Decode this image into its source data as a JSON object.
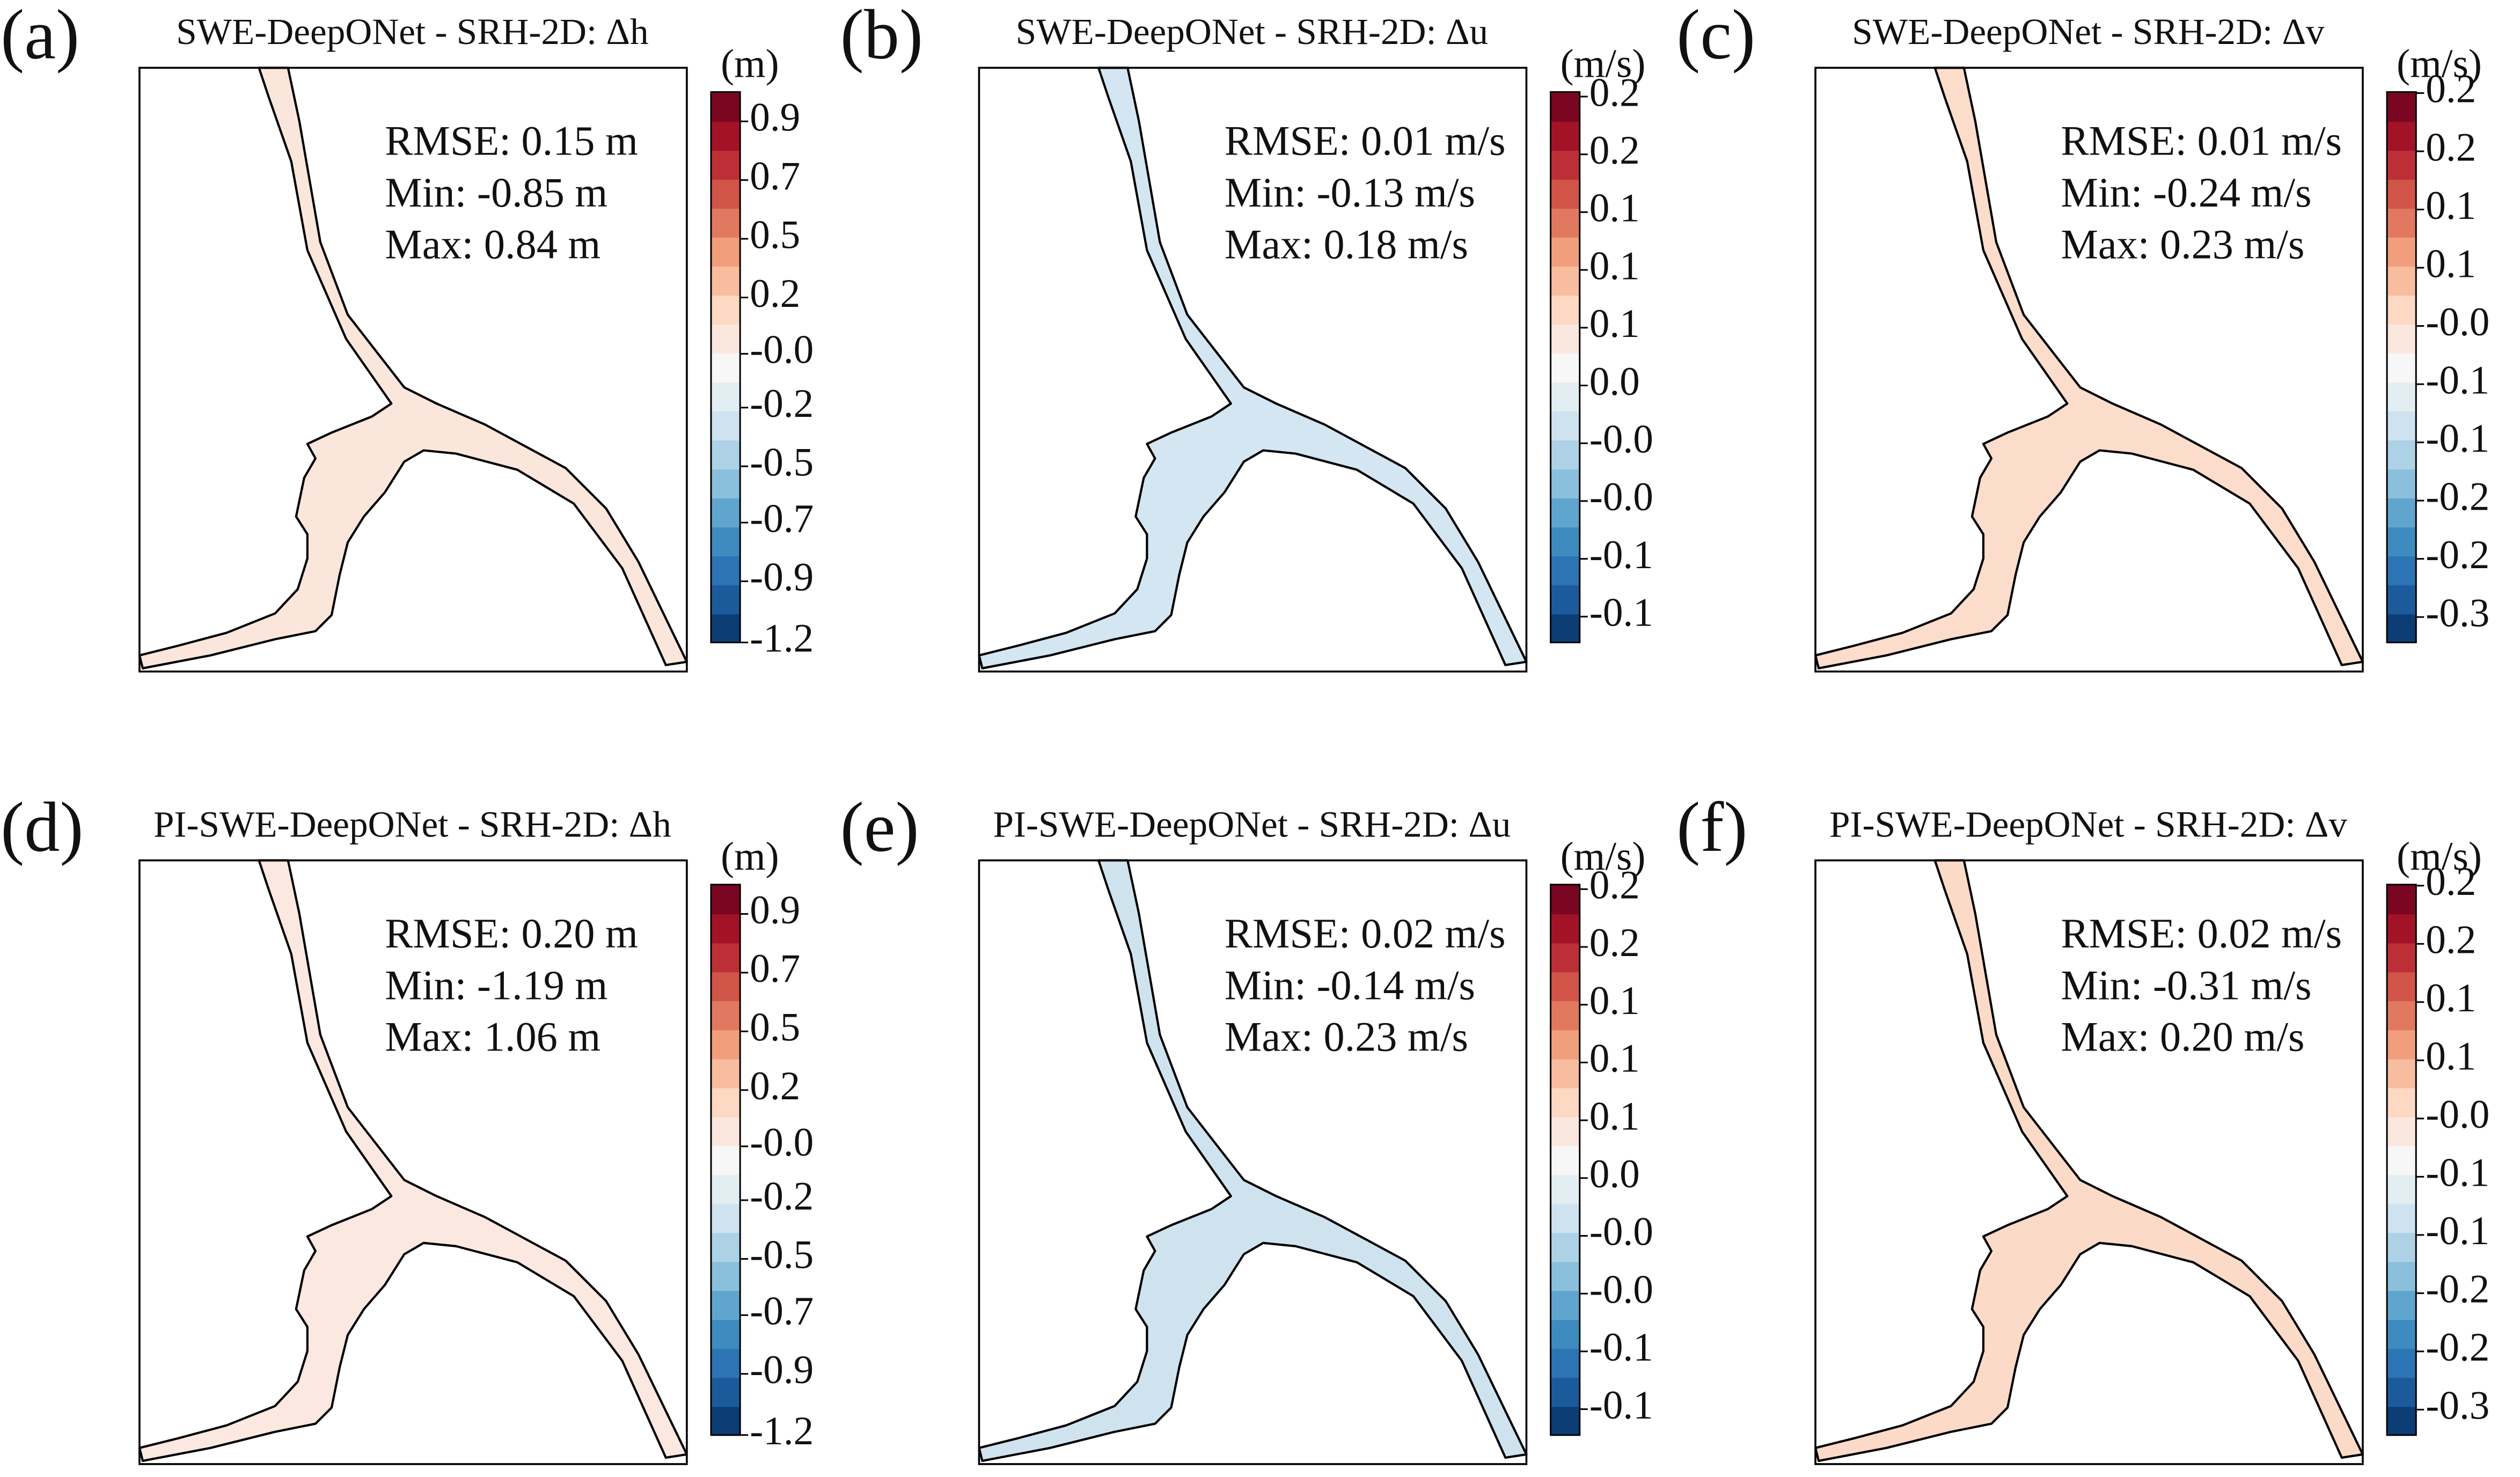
{
  "chart_data": [
    {
      "type": "contour",
      "label": "(a)",
      "title": "SWE-DeepONet - SRH-2D: Δh",
      "annotations": [
        "RMSE: 0.15 m",
        "Min: -0.85 m",
        "Max: 0.84 m"
      ],
      "colorbar_label": "(m)",
      "color": "#fbe6dc",
      "clim": [
        -1.19,
        1.06
      ],
      "cticks": [
        {
          "value": -1.19,
          "label": "-1.2"
        },
        {
          "value": -0.94,
          "label": "-0.9"
        },
        {
          "value": -0.7,
          "label": "-0.7"
        },
        {
          "value": -0.47,
          "label": "-0.5"
        },
        {
          "value": -0.23,
          "label": "-0.2"
        },
        {
          "value": -0.01,
          "label": "-0.0"
        },
        {
          "value": 0.22,
          "label": "0.2"
        },
        {
          "value": 0.46,
          "label": "0.5"
        },
        {
          "value": 0.7,
          "label": "0.7"
        },
        {
          "value": 0.94,
          "label": "0.9"
        }
      ]
    },
    {
      "type": "contour",
      "label": "(b)",
      "title": "SWE-DeepONet - SRH-2D: Δu",
      "annotations": [
        "RMSE: 0.01 m/s",
        "Min: -0.13 m/s",
        "Max: 0.18 m/s"
      ],
      "colorbar_label": "(m/s)",
      "color": "#d3e6f1",
      "clim": [
        -0.142,
        0.22
      ],
      "cticks": [
        {
          "value": -0.125,
          "label": "-0.1"
        },
        {
          "value": -0.087,
          "label": "-0.1"
        },
        {
          "value": -0.049,
          "label": "-0.0"
        },
        {
          "value": -0.011,
          "label": "-0.0"
        },
        {
          "value": 0.027,
          "label": "0.0"
        },
        {
          "value": 0.065,
          "label": "0.1"
        },
        {
          "value": 0.103,
          "label": "0.1"
        },
        {
          "value": 0.141,
          "label": "0.1"
        },
        {
          "value": 0.179,
          "label": "0.2"
        },
        {
          "value": 0.217,
          "label": "0.2"
        }
      ]
    },
    {
      "type": "contour",
      "label": "(c)",
      "title": "SWE-DeepONet - SRH-2D: Δv",
      "annotations": [
        "RMSE: 0.01 m/s",
        "Min: -0.24 m/s",
        "Max: 0.23 m/s"
      ],
      "colorbar_label": "(m/s)",
      "color": "#fcdcca",
      "clim": [
        -0.3,
        0.22
      ],
      "cticks": [
        {
          "value": -0.276,
          "label": "-0.3"
        },
        {
          "value": -0.221,
          "label": "-0.2"
        },
        {
          "value": -0.166,
          "label": "-0.2"
        },
        {
          "value": -0.111,
          "label": "-0.1"
        },
        {
          "value": -0.056,
          "label": "-0.1"
        },
        {
          "value": -0.001,
          "label": "-0.0"
        },
        {
          "value": 0.054,
          "label": "0.1"
        },
        {
          "value": 0.109,
          "label": "0.1"
        },
        {
          "value": 0.164,
          "label": "0.2"
        },
        {
          "value": 0.219,
          "label": "0.2"
        }
      ]
    },
    {
      "type": "contour",
      "label": "(d)",
      "title": "PI-SWE-DeepONet - SRH-2D: Δh",
      "annotations": [
        "RMSE: 0.20 m",
        "Min: -1.19 m",
        "Max: 1.06 m"
      ],
      "colorbar_label": "(m)",
      "color": "#fbe8e0",
      "clim": [
        -1.19,
        1.06
      ],
      "cticks": [
        {
          "value": -1.19,
          "label": "-1.2"
        },
        {
          "value": -0.94,
          "label": "-0.9"
        },
        {
          "value": -0.7,
          "label": "-0.7"
        },
        {
          "value": -0.47,
          "label": "-0.5"
        },
        {
          "value": -0.23,
          "label": "-0.2"
        },
        {
          "value": -0.01,
          "label": "-0.0"
        },
        {
          "value": 0.22,
          "label": "0.2"
        },
        {
          "value": 0.46,
          "label": "0.5"
        },
        {
          "value": 0.7,
          "label": "0.7"
        },
        {
          "value": 0.94,
          "label": "0.9"
        }
      ]
    },
    {
      "type": "contour",
      "label": "(e)",
      "title": "PI-SWE-DeepONet - SRH-2D: Δu",
      "annotations": [
        "RMSE: 0.02 m/s",
        "Min: -0.14 m/s",
        "Max: 0.23 m/s"
      ],
      "colorbar_label": "(m/s)",
      "color": "#cfe3ef",
      "clim": [
        -0.142,
        0.22
      ],
      "cticks": [
        {
          "value": -0.125,
          "label": "-0.1"
        },
        {
          "value": -0.087,
          "label": "-0.1"
        },
        {
          "value": -0.049,
          "label": "-0.0"
        },
        {
          "value": -0.011,
          "label": "-0.0"
        },
        {
          "value": 0.027,
          "label": "0.0"
        },
        {
          "value": 0.065,
          "label": "0.1"
        },
        {
          "value": 0.103,
          "label": "0.1"
        },
        {
          "value": 0.141,
          "label": "0.1"
        },
        {
          "value": 0.179,
          "label": "0.2"
        },
        {
          "value": 0.217,
          "label": "0.2"
        }
      ]
    },
    {
      "type": "contour",
      "label": "(f)",
      "title": "PI-SWE-DeepONet - SRH-2D: Δv",
      "annotations": [
        "RMSE: 0.02 m/s",
        "Min: -0.31 m/s",
        "Max: 0.20 m/s"
      ],
      "colorbar_label": "(m/s)",
      "color": "#fcdac8",
      "clim": [
        -0.3,
        0.22
      ],
      "cticks": [
        {
          "value": -0.276,
          "label": "-0.3"
        },
        {
          "value": -0.221,
          "label": "-0.2"
        },
        {
          "value": -0.166,
          "label": "-0.2"
        },
        {
          "value": -0.111,
          "label": "-0.1"
        },
        {
          "value": -0.056,
          "label": "-0.1"
        },
        {
          "value": -0.001,
          "label": "-0.0"
        },
        {
          "value": 0.054,
          "label": "0.1"
        },
        {
          "value": 0.109,
          "label": "0.1"
        },
        {
          "value": 0.164,
          "label": "0.2"
        },
        {
          "value": 0.219,
          "label": "0.2"
        }
      ]
    }
  ]
}
